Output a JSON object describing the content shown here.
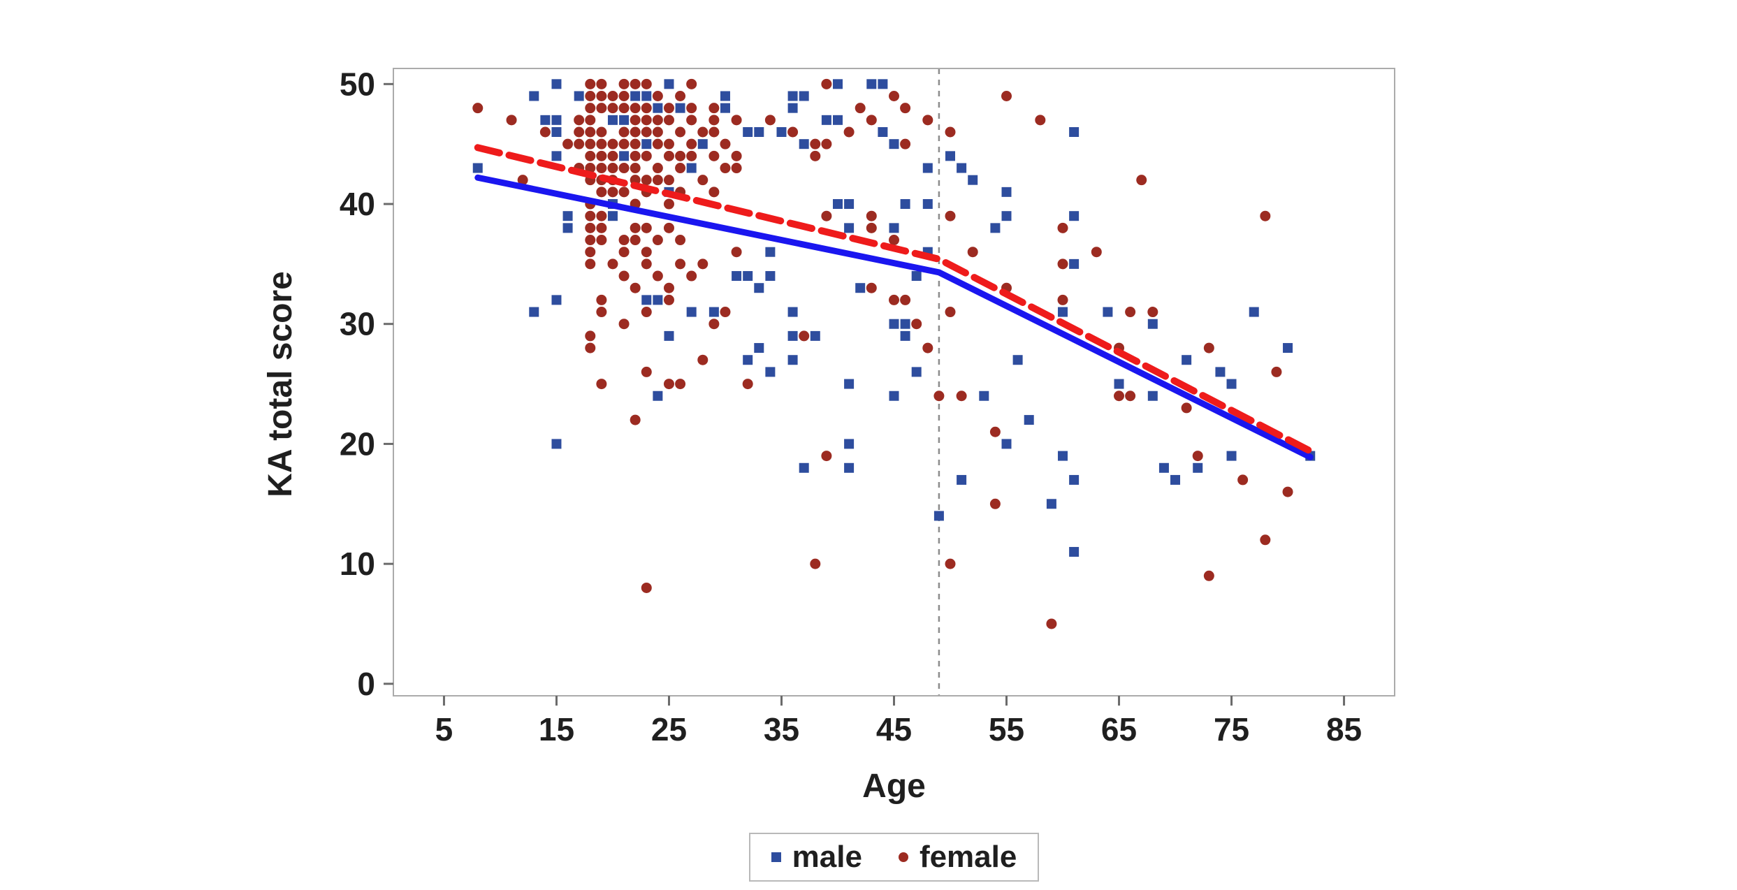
{
  "chart_data": {
    "type": "scatter",
    "title": "",
    "xlabel": "Age",
    "ylabel": "KA total score",
    "xlim": [
      0.5,
      89.5
    ],
    "ylim": [
      -1.0,
      51.3
    ],
    "x_ticks": [
      5,
      15,
      25,
      35,
      45,
      55,
      65,
      75,
      85
    ],
    "y_ticks": [
      0,
      10,
      20,
      30,
      40,
      50
    ],
    "grid": false,
    "legend_position": "bottom",
    "reference_line_x": 49,
    "colors": {
      "frame": "#ababab",
      "tick": "#6b6b6b",
      "reference_line": "#8c8c8c",
      "male_marker": "#2e4d9e",
      "male_line": "#1a16ef",
      "female_marker": "#9c2b21",
      "female_line": "#ee1b1b"
    },
    "series": [
      {
        "name": "male",
        "marker": "square",
        "marker_color": "#2e4d9e",
        "line_color": "#1a16ef",
        "line_style": "solid",
        "trend_line": [
          [
            8,
            42.2
          ],
          [
            49,
            34.3
          ],
          [
            82,
            18.9
          ]
        ],
        "points": [
          [
            15,
            50
          ],
          [
            25,
            50
          ],
          [
            40,
            50
          ],
          [
            43,
            50
          ],
          [
            44,
            50
          ],
          [
            13,
            49
          ],
          [
            17,
            49
          ],
          [
            22,
            49
          ],
          [
            23,
            49
          ],
          [
            30,
            49
          ],
          [
            36,
            49
          ],
          [
            37,
            49
          ],
          [
            24,
            48
          ],
          [
            26,
            48
          ],
          [
            30,
            48
          ],
          [
            36,
            48
          ],
          [
            14,
            47
          ],
          [
            15,
            47
          ],
          [
            20,
            47
          ],
          [
            21,
            47
          ],
          [
            39,
            47
          ],
          [
            40,
            47
          ],
          [
            15,
            46
          ],
          [
            32,
            46
          ],
          [
            33,
            46
          ],
          [
            35,
            46
          ],
          [
            44,
            46
          ],
          [
            61,
            46
          ],
          [
            23,
            45
          ],
          [
            28,
            45
          ],
          [
            37,
            45
          ],
          [
            45,
            45
          ],
          [
            15,
            44
          ],
          [
            21,
            44
          ],
          [
            50,
            44
          ],
          [
            8,
            43
          ],
          [
            27,
            43
          ],
          [
            48,
            43
          ],
          [
            51,
            43
          ],
          [
            52,
            42
          ],
          [
            25,
            41
          ],
          [
            55,
            41
          ],
          [
            20,
            40
          ],
          [
            40,
            40
          ],
          [
            41,
            40
          ],
          [
            46,
            40
          ],
          [
            48,
            40
          ],
          [
            16,
            39
          ],
          [
            20,
            39
          ],
          [
            55,
            39
          ],
          [
            61,
            39
          ],
          [
            16,
            38
          ],
          [
            41,
            38
          ],
          [
            45,
            38
          ],
          [
            54,
            38
          ],
          [
            34,
            36
          ],
          [
            48,
            36
          ],
          [
            61,
            35
          ],
          [
            31,
            34
          ],
          [
            32,
            34
          ],
          [
            34,
            34
          ],
          [
            47,
            34
          ],
          [
            33,
            33
          ],
          [
            42,
            33
          ],
          [
            15,
            32
          ],
          [
            23,
            32
          ],
          [
            24,
            32
          ],
          [
            13,
            31
          ],
          [
            27,
            31
          ],
          [
            29,
            31
          ],
          [
            36,
            31
          ],
          [
            60,
            31
          ],
          [
            64,
            31
          ],
          [
            77,
            31
          ],
          [
            45,
            30
          ],
          [
            46,
            30
          ],
          [
            68,
            30
          ],
          [
            25,
            29
          ],
          [
            36,
            29
          ],
          [
            38,
            29
          ],
          [
            46,
            29
          ],
          [
            33,
            28
          ],
          [
            80,
            28
          ],
          [
            32,
            27
          ],
          [
            36,
            27
          ],
          [
            56,
            27
          ],
          [
            71,
            27
          ],
          [
            34,
            26
          ],
          [
            47,
            26
          ],
          [
            74,
            26
          ],
          [
            41,
            25
          ],
          [
            65,
            25
          ],
          [
            75,
            25
          ],
          [
            24,
            24
          ],
          [
            45,
            24
          ],
          [
            53,
            24
          ],
          [
            68,
            24
          ],
          [
            57,
            22
          ],
          [
            15,
            20
          ],
          [
            41,
            20
          ],
          [
            55,
            20
          ],
          [
            60,
            19
          ],
          [
            75,
            19
          ],
          [
            82,
            19
          ],
          [
            37,
            18
          ],
          [
            41,
            18
          ],
          [
            69,
            18
          ],
          [
            72,
            18
          ],
          [
            51,
            17
          ],
          [
            61,
            17
          ],
          [
            70,
            17
          ],
          [
            59,
            15
          ],
          [
            49,
            14
          ],
          [
            61,
            11
          ]
        ]
      },
      {
        "name": "female",
        "marker": "circle",
        "marker_color": "#9c2b21",
        "line_color": "#ee1b1b",
        "line_style": "dashed",
        "trend_line": [
          [
            8,
            44.7
          ],
          [
            49,
            35.4
          ],
          [
            82,
            19.4
          ]
        ],
        "points": [
          [
            18,
            50
          ],
          [
            19,
            50
          ],
          [
            21,
            50
          ],
          [
            22,
            50
          ],
          [
            23,
            50
          ],
          [
            27,
            50
          ],
          [
            39,
            50
          ],
          [
            18,
            49
          ],
          [
            19,
            49
          ],
          [
            20,
            49
          ],
          [
            21,
            49
          ],
          [
            24,
            49
          ],
          [
            26,
            49
          ],
          [
            45,
            49
          ],
          [
            55,
            49
          ],
          [
            8,
            48
          ],
          [
            18,
            48
          ],
          [
            19,
            48
          ],
          [
            20,
            48
          ],
          [
            21,
            48
          ],
          [
            22,
            48
          ],
          [
            23,
            48
          ],
          [
            25,
            48
          ],
          [
            27,
            48
          ],
          [
            29,
            48
          ],
          [
            42,
            48
          ],
          [
            46,
            48
          ],
          [
            11,
            47
          ],
          [
            17,
            47
          ],
          [
            18,
            47
          ],
          [
            22,
            47
          ],
          [
            23,
            47
          ],
          [
            24,
            47
          ],
          [
            25,
            47
          ],
          [
            27,
            47
          ],
          [
            29,
            47
          ],
          [
            31,
            47
          ],
          [
            34,
            47
          ],
          [
            43,
            47
          ],
          [
            48,
            47
          ],
          [
            58,
            47
          ],
          [
            14,
            46
          ],
          [
            17,
            46
          ],
          [
            18,
            46
          ],
          [
            19,
            46
          ],
          [
            21,
            46
          ],
          [
            22,
            46
          ],
          [
            23,
            46
          ],
          [
            24,
            46
          ],
          [
            26,
            46
          ],
          [
            28,
            46
          ],
          [
            29,
            46
          ],
          [
            36,
            46
          ],
          [
            41,
            46
          ],
          [
            50,
            46
          ],
          [
            16,
            45
          ],
          [
            17,
            45
          ],
          [
            18,
            45
          ],
          [
            19,
            45
          ],
          [
            20,
            45
          ],
          [
            21,
            45
          ],
          [
            22,
            45
          ],
          [
            24,
            45
          ],
          [
            25,
            45
          ],
          [
            27,
            45
          ],
          [
            30,
            45
          ],
          [
            38,
            45
          ],
          [
            39,
            45
          ],
          [
            46,
            45
          ],
          [
            18,
            44
          ],
          [
            19,
            44
          ],
          [
            20,
            44
          ],
          [
            22,
            44
          ],
          [
            23,
            44
          ],
          [
            25,
            44
          ],
          [
            26,
            44
          ],
          [
            27,
            44
          ],
          [
            29,
            44
          ],
          [
            31,
            44
          ],
          [
            38,
            44
          ],
          [
            17,
            43
          ],
          [
            18,
            43
          ],
          [
            19,
            43
          ],
          [
            20,
            43
          ],
          [
            21,
            43
          ],
          [
            22,
            43
          ],
          [
            24,
            43
          ],
          [
            26,
            43
          ],
          [
            30,
            43
          ],
          [
            31,
            43
          ],
          [
            12,
            42
          ],
          [
            18,
            42
          ],
          [
            19,
            42
          ],
          [
            20,
            42
          ],
          [
            22,
            42
          ],
          [
            23,
            42
          ],
          [
            24,
            42
          ],
          [
            25,
            42
          ],
          [
            28,
            42
          ],
          [
            67,
            42
          ],
          [
            19,
            41
          ],
          [
            20,
            41
          ],
          [
            21,
            41
          ],
          [
            23,
            41
          ],
          [
            26,
            41
          ],
          [
            29,
            41
          ],
          [
            18,
            40
          ],
          [
            22,
            40
          ],
          [
            25,
            40
          ],
          [
            18,
            39
          ],
          [
            19,
            39
          ],
          [
            39,
            39
          ],
          [
            43,
            39
          ],
          [
            50,
            39
          ],
          [
            78,
            39
          ],
          [
            18,
            38
          ],
          [
            19,
            38
          ],
          [
            22,
            38
          ],
          [
            23,
            38
          ],
          [
            25,
            38
          ],
          [
            43,
            38
          ],
          [
            60,
            38
          ],
          [
            18,
            37
          ],
          [
            19,
            37
          ],
          [
            21,
            37
          ],
          [
            22,
            37
          ],
          [
            24,
            37
          ],
          [
            26,
            37
          ],
          [
            45,
            37
          ],
          [
            18,
            36
          ],
          [
            21,
            36
          ],
          [
            23,
            36
          ],
          [
            31,
            36
          ],
          [
            52,
            36
          ],
          [
            63,
            36
          ],
          [
            18,
            35
          ],
          [
            20,
            35
          ],
          [
            23,
            35
          ],
          [
            26,
            35
          ],
          [
            28,
            35
          ],
          [
            60,
            35
          ],
          [
            21,
            34
          ],
          [
            24,
            34
          ],
          [
            27,
            34
          ],
          [
            22,
            33
          ],
          [
            25,
            33
          ],
          [
            43,
            33
          ],
          [
            55,
            33
          ],
          [
            19,
            32
          ],
          [
            25,
            32
          ],
          [
            45,
            32
          ],
          [
            46,
            32
          ],
          [
            60,
            32
          ],
          [
            19,
            31
          ],
          [
            23,
            31
          ],
          [
            30,
            31
          ],
          [
            50,
            31
          ],
          [
            66,
            31
          ],
          [
            68,
            31
          ],
          [
            21,
            30
          ],
          [
            29,
            30
          ],
          [
            47,
            30
          ],
          [
            18,
            29
          ],
          [
            37,
            29
          ],
          [
            18,
            28
          ],
          [
            48,
            28
          ],
          [
            65,
            28
          ],
          [
            73,
            28
          ],
          [
            28,
            27
          ],
          [
            23,
            26
          ],
          [
            79,
            26
          ],
          [
            19,
            25
          ],
          [
            25,
            25
          ],
          [
            26,
            25
          ],
          [
            32,
            25
          ],
          [
            49,
            24
          ],
          [
            51,
            24
          ],
          [
            65,
            24
          ],
          [
            66,
            24
          ],
          [
            71,
            23
          ],
          [
            22,
            22
          ],
          [
            54,
            21
          ],
          [
            39,
            19
          ],
          [
            72,
            19
          ],
          [
            76,
            17
          ],
          [
            80,
            16
          ],
          [
            54,
            15
          ],
          [
            78,
            12
          ],
          [
            38,
            10
          ],
          [
            50,
            10
          ],
          [
            73,
            9
          ],
          [
            23,
            8
          ],
          [
            59,
            5
          ]
        ]
      }
    ]
  }
}
